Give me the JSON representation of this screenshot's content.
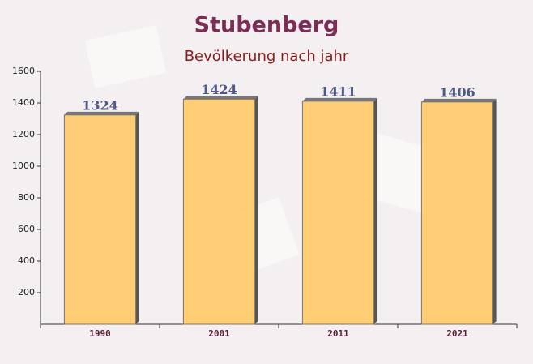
{
  "chart_data": {
    "type": "bar",
    "title": "Stubenberg",
    "subtitle": "Bevölkerung nach jahr",
    "categories": [
      "1990",
      "2001",
      "2011",
      "2021"
    ],
    "values": [
      1324,
      1424,
      1411,
      1406
    ],
    "color": "#ffc966",
    "ylim": [
      0,
      1600
    ],
    "yticks": [
      200,
      400,
      600,
      800,
      1000,
      1200,
      1400,
      1600
    ],
    "grid": false
  }
}
